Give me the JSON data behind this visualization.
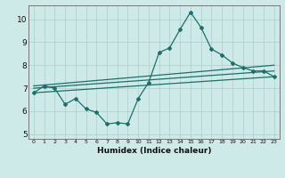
{
  "title": "",
  "xlabel": "Humidex (Indice chaleur)",
  "ylabel": "",
  "bg_color": "#ceeae8",
  "grid_color": "#aacfcc",
  "line_color": "#1e6e6a",
  "xlim": [
    -0.5,
    23.5
  ],
  "ylim": [
    4.8,
    10.6
  ],
  "yticks": [
    5,
    6,
    7,
    8,
    9,
    10
  ],
  "xticks": [
    0,
    1,
    2,
    3,
    4,
    5,
    6,
    7,
    8,
    9,
    10,
    11,
    12,
    13,
    14,
    15,
    16,
    17,
    18,
    19,
    20,
    21,
    22,
    23
  ],
  "line1_x": [
    0,
    1,
    2,
    3,
    4,
    5,
    6,
    7,
    8,
    9,
    10,
    11,
    12,
    13,
    14,
    15,
    16,
    17,
    18,
    19,
    20,
    21,
    22,
    23
  ],
  "line1_y": [
    6.8,
    7.1,
    7.0,
    6.3,
    6.55,
    6.1,
    5.95,
    5.45,
    5.5,
    5.45,
    6.55,
    7.25,
    8.55,
    8.75,
    9.55,
    10.3,
    9.65,
    8.7,
    8.45,
    8.1,
    7.9,
    7.75,
    7.75,
    7.5
  ],
  "line2_x": [
    0,
    23
  ],
  "line2_y": [
    6.8,
    7.5
  ],
  "line3_x": [
    0,
    23
  ],
  "line3_y": [
    7.0,
    7.75
  ],
  "line4_x": [
    0,
    23
  ],
  "line4_y": [
    7.1,
    8.0
  ]
}
